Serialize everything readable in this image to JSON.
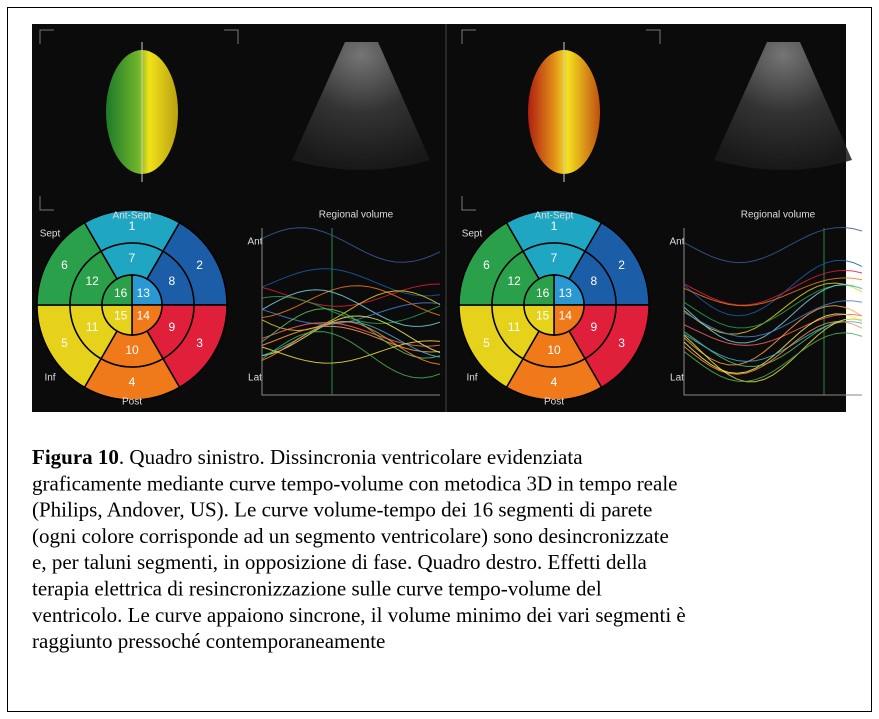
{
  "figure": {
    "panels": [
      {
        "graph_title": "Regional volume",
        "labels": {
          "top": "Ant-Sept",
          "upper_left": "Sept",
          "upper_right": "Ant",
          "lower_left": "Inf",
          "lower_right": "Lat",
          "bottom": "Post"
        },
        "segments": [
          "1",
          "2",
          "3",
          "4",
          "5",
          "6",
          "7",
          "8",
          "9",
          "10",
          "11",
          "12",
          "13",
          "14",
          "15",
          "16"
        ]
      },
      {
        "graph_title": "Regional volume",
        "labels": {
          "top": "Ant-Sept",
          "upper_left": "Sept",
          "upper_right": "Ant",
          "lower_left": "Inf",
          "lower_right": "Lat",
          "bottom": "Post"
        },
        "segments": [
          "1",
          "2",
          "3",
          "4",
          "5",
          "6",
          "7",
          "8",
          "9",
          "10",
          "11",
          "12",
          "13",
          "14",
          "15",
          "16"
        ]
      }
    ]
  },
  "caption": {
    "label": "Figura 10",
    "lines": [
      ". Quadro sinistro. Dissincronia ventricolare evidenziata",
      "graficamente mediante curve tempo-volume con metodica 3D in tempo reale",
      "(Philips, Andover, US). Le curve volume-tempo dei 16 segmenti di parete",
      "(ogni colore corrisponde ad un segmento ventricolare)  sono  desincronizzate",
      "e, per taluni segmenti, in opposizione di fase. Quadro destro. Effetti della",
      "terapia elettrica di resincronizzazione sulle curve tempo-volume del",
      "ventricolo. Le curve appaiono sincrone, il volume minimo dei vari segmenti è",
      "raggiunto pressoché contemporaneamente"
    ]
  }
}
